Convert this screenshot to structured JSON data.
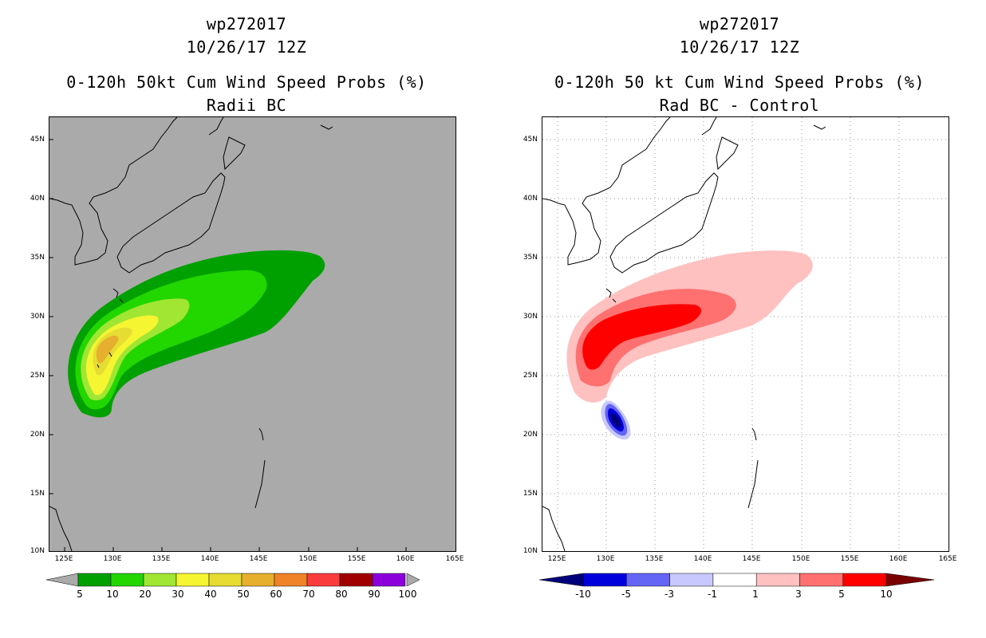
{
  "left_panel": {
    "title_line1": "wp272017",
    "title_line2": "10/26/17 12Z",
    "title_line3": "0-120h 50kt Cum Wind Speed Probs (%)",
    "title_line4": "Radii BC",
    "background_color": "#aaaaaa",
    "colorbar": {
      "labels": [
        "5",
        "10",
        "20",
        "30",
        "40",
        "50",
        "60",
        "70",
        "80",
        "90",
        "100"
      ],
      "colors": [
        "#00a000",
        "#22d600",
        "#a0e632",
        "#f5f532",
        "#e6dc32",
        "#e6af2d",
        "#f08228",
        "#fa3c3c",
        "#a00000",
        "#8c00dc"
      ],
      "end_color": "#aaaaaa"
    }
  },
  "right_panel": {
    "title_line1": "wp272017",
    "title_line2": "10/26/17 12Z",
    "title_line3": "0-120h 50 kt Cum Wind Speed Probs (%)",
    "title_line4": "Rad BC - Control",
    "background_color": "#ffffff",
    "colorbar": {
      "labels": [
        "-10",
        "-5",
        "-3",
        "-1",
        "1",
        "3",
        "5",
        "10"
      ],
      "colors": [
        "#0000dc",
        "#6464f5",
        "#c8c8ff",
        "#ffffff",
        "#ffc0c0",
        "#ff7070",
        "#ff0000"
      ],
      "low_end_color": "#00007a",
      "high_end_color": "#7a0000"
    }
  },
  "axes": {
    "lat_labels": [
      "45N",
      "40N",
      "35N",
      "30N",
      "25N",
      "20N",
      "15N",
      "10N"
    ],
    "lon_labels": [
      "125E",
      "130E",
      "135E",
      "140E",
      "145E",
      "150E",
      "155E",
      "160E",
      "165E"
    ]
  }
}
